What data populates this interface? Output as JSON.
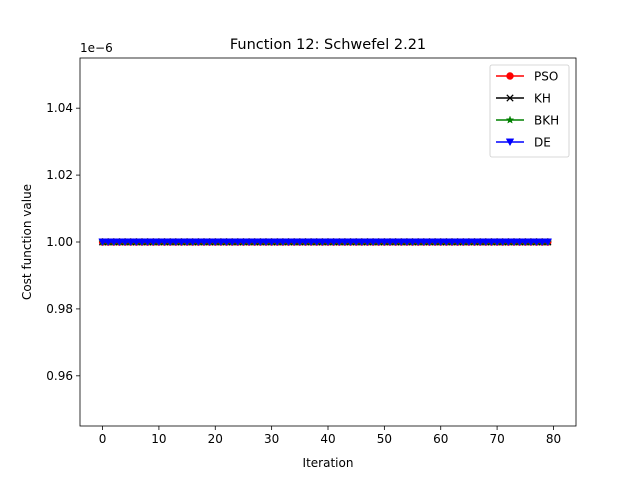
{
  "chart_data": {
    "type": "line",
    "title": "Function 12: Schwefel  2.21",
    "xlabel": "Iteration",
    "ylabel": "Cost function value",
    "y_offset_label": "1e−6",
    "xlim": [
      -4,
      84
    ],
    "ylim": [
      0.945,
      1.055
    ],
    "x_ticks": [
      0,
      10,
      20,
      30,
      40,
      50,
      60,
      70,
      80
    ],
    "x_tick_labels": [
      "0",
      "10",
      "20",
      "30",
      "40",
      "50",
      "60",
      "70",
      "80"
    ],
    "y_ticks": [
      0.96,
      0.98,
      1.0,
      1.02,
      1.04
    ],
    "y_tick_labels": [
      "0.96",
      "0.98",
      "1.00",
      "1.02",
      "1.04"
    ],
    "grid": false,
    "legend_position": "top-right",
    "x_start": 0,
    "x_end": 79,
    "series": [
      {
        "name": "PSO",
        "color": "#ff0000",
        "marker": "circle",
        "constant_value": 1.0
      },
      {
        "name": "KH",
        "color": "#000000",
        "marker": "x",
        "constant_value": 1.0
      },
      {
        "name": "BKH",
        "color": "#008000",
        "marker": "star",
        "constant_value": 1.0
      },
      {
        "name": "DE",
        "color": "#0000ff",
        "marker": "triangle-down",
        "constant_value": 1.0
      }
    ]
  }
}
